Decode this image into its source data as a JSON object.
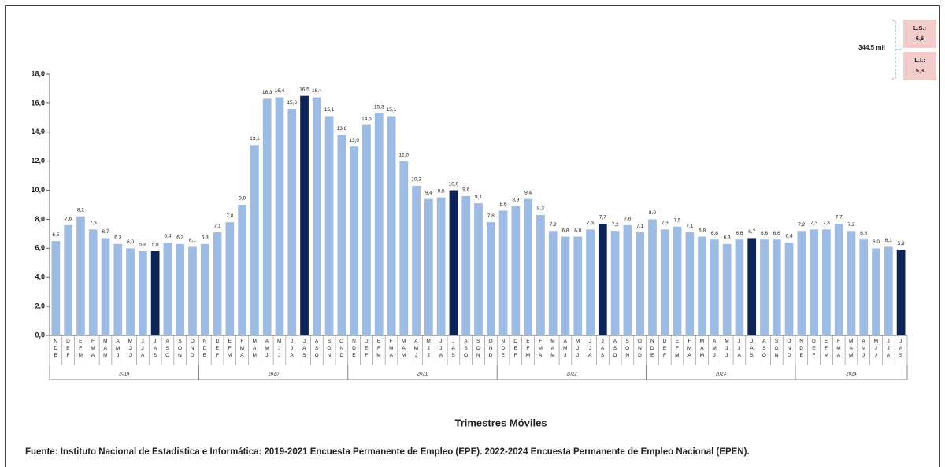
{
  "chart_data": {
    "type": "bar",
    "x_label": "Trimestres Móviles",
    "source": "Fuente: Instituto Nacional de Estadistica e Informática: 2019-2021 Encuesta Permanente de Empleo (EPE). 2022-2024 Encuesta Permanente de Empleo Nacional (EPEN).",
    "annotation": {
      "value_text": "344.5 mil",
      "upper_label": "L.S.:",
      "upper_value": "6,6",
      "lower_label": "L.I.:",
      "lower_value": "5,3"
    },
    "years": [
      "2019",
      "2020",
      "2021",
      "2022",
      "2023",
      "2024"
    ],
    "categories": [
      "NDE",
      "DEF",
      "EFM",
      "FMA",
      "MAM",
      "AMJ",
      "MJJ",
      "JJA",
      "JAS",
      "ASO",
      "SON",
      "OND",
      "NDE",
      "DEF",
      "EFM",
      "FMA",
      "MAM",
      "AMJ",
      "MJJ",
      "JJA",
      "JAS",
      "ASO",
      "SON",
      "OND",
      "NDE",
      "DEF",
      "EFM",
      "FMA",
      "MAM",
      "AMJ",
      "MJJ",
      "JJA",
      "JAS",
      "ASO",
      "SON",
      "OND",
      "NDE",
      "DEF",
      "EFM",
      "FMA",
      "MAM",
      "AMJ",
      "MJJ",
      "JJA",
      "JAS",
      "ASO",
      "SON",
      "OND",
      "NDE",
      "DEF",
      "EFM",
      "FMA",
      "MAM",
      "AMJ",
      "MJJ",
      "JJA",
      "JAS",
      "ASO",
      "SON",
      "OND",
      "NDE",
      "DEF",
      "EFM",
      "FMA",
      "MAM",
      "AMJ",
      "MJJ",
      "JJA",
      "JAS"
    ],
    "values": [
      6.5,
      7.6,
      8.2,
      7.3,
      6.7,
      6.3,
      6.0,
      5.8,
      5.8,
      6.4,
      6.3,
      6.1,
      6.3,
      7.1,
      7.8,
      9.0,
      13.1,
      16.3,
      16.4,
      15.6,
      16.5,
      16.4,
      15.1,
      13.8,
      13.0,
      14.5,
      15.3,
      15.1,
      12.0,
      10.3,
      9.4,
      9.5,
      10.0,
      9.6,
      9.1,
      7.8,
      8.6,
      8.9,
      9.4,
      8.3,
      7.2,
      6.8,
      6.8,
      7.3,
      7.7,
      7.2,
      7.6,
      7.1,
      8.0,
      7.3,
      7.5,
      7.1,
      6.8,
      6.6,
      6.3,
      6.6,
      6.7,
      6.6,
      6.6,
      6.4,
      7.2,
      7.3,
      7.3,
      7.7,
      7.2,
      6.6,
      6.0,
      6.1,
      5.9
    ],
    "value_labels": [
      "6,5",
      "7,6",
      "8,2",
      "7,3",
      "6,7",
      "6,3",
      "6,0",
      "5,8",
      "5,8",
      "6,4",
      "6,3",
      "6,1",
      "6,3",
      "7,1",
      "7,8",
      "9,0",
      "13,1",
      "16,3",
      "16,4",
      "15,6",
      "16,5",
      "16,4",
      "15,1",
      "13,8",
      "13,0",
      "14,5",
      "15,3",
      "15,1",
      "12,0",
      "10,3",
      "9,4",
      "9,5",
      "10,0",
      "9,6",
      "9,1",
      "7,8",
      "8,6",
      "8,9",
      "9,4",
      "8,3",
      "7,2",
      "6,8",
      "6,8",
      "7,3",
      "7,7",
      "7,2",
      "7,6",
      "7,1",
      "8,0",
      "7,3",
      "7,5",
      "7,1",
      "6,8",
      "6,6",
      "6,3",
      "6,6",
      "6,7",
      "6,6",
      "6,6",
      "6,4",
      "7,2",
      "7,3",
      "7,3",
      "7,7",
      "7,2",
      "6,6",
      "6,0",
      "6,1",
      "5,9"
    ],
    "color": "#9dbbe3",
    "highlight_color": "#0e2456",
    "highlight_category": "JAS",
    "ylim": [
      0,
      18
    ],
    "yticks": [
      {
        "value": 0,
        "label": "0,0"
      },
      {
        "value": 2,
        "label": "2,0"
      },
      {
        "value": 4,
        "label": "4,0"
      },
      {
        "value": 6,
        "label": "6,0"
      },
      {
        "value": 8,
        "label": "8,0"
      },
      {
        "value": 10,
        "label": "10,0"
      },
      {
        "value": 12,
        "label": "12,0"
      },
      {
        "value": 14,
        "label": "14,0"
      },
      {
        "value": 16,
        "label": "16,0"
      },
      {
        "value": 18,
        "label": "18,0"
      }
    ]
  }
}
